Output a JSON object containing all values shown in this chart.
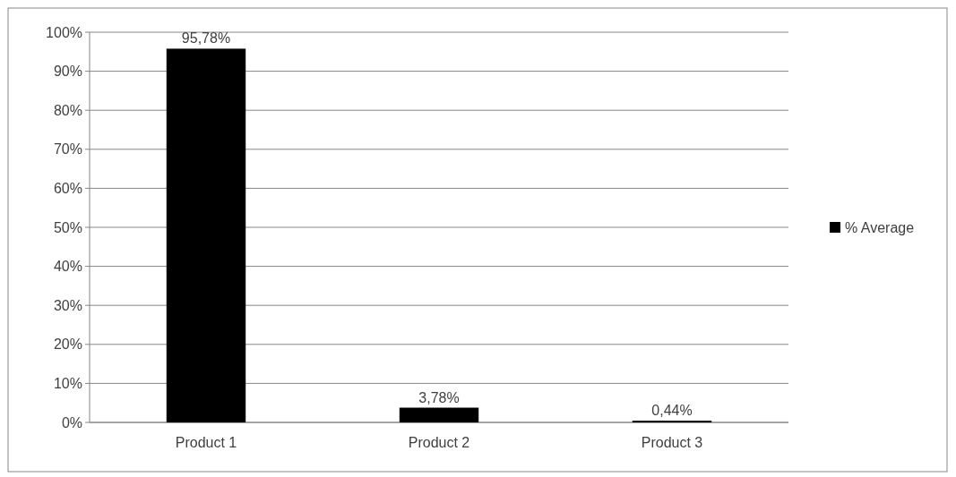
{
  "chart_data": {
    "type": "bar",
    "categories": [
      "Product 1",
      "Product 2",
      "Product 3"
    ],
    "series": [
      {
        "name": "% Average",
        "color": "#000000",
        "values": [
          95.78,
          3.78,
          0.44
        ],
        "value_labels": [
          "95,78%",
          "3,78%",
          "0,44%"
        ]
      }
    ],
    "ylim": [
      0,
      100
    ],
    "yticks": [
      {
        "value": 0,
        "label": "0%"
      },
      {
        "value": 10,
        "label": "10%"
      },
      {
        "value": 20,
        "label": "20%"
      },
      {
        "value": 30,
        "label": "30%"
      },
      {
        "value": 40,
        "label": "40%"
      },
      {
        "value": 50,
        "label": "50%"
      },
      {
        "value": 60,
        "label": "60%"
      },
      {
        "value": 70,
        "label": "70%"
      },
      {
        "value": 80,
        "label": "80%"
      },
      {
        "value": 90,
        "label": "90%"
      },
      {
        "value": 100,
        "label": "100%"
      }
    ],
    "grid": "y",
    "legend": "right"
  }
}
